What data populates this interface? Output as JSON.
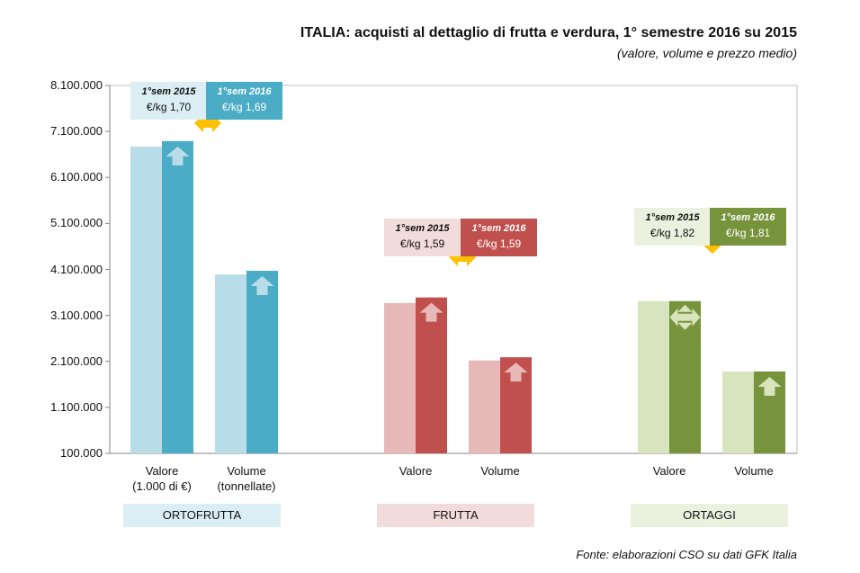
{
  "chart_data": {
    "type": "bar",
    "title": "ITALIA: acquisti al dettaglio di frutta e verdura, 1° semestre 2016 su 2015",
    "subtitle": "(valore, volume e prezzo medio)",
    "source": "Fonte: elaborazioni CSO su dati GFK Italia",
    "ylim": [
      100000,
      8100000
    ],
    "yticks": [
      "8.100.000",
      "7.100.000",
      "6.100.000",
      "5.100.000",
      "4.100.000",
      "3.100.000",
      "2.100.000",
      "1.100.000",
      "100.000"
    ],
    "groups": [
      {
        "name": "ORTOFRUTTA",
        "color2015": "#b8dde8",
        "color2016": "#4bacc6",
        "catbg": "#dbeef4",
        "categories": [
          {
            "label": "Valore",
            "sub": "(1.000 di €)",
            "v2015": 6770000,
            "v2016": 6890000,
            "arrow": "up"
          },
          {
            "label": "Volume",
            "sub": "(tonnellate)",
            "v2015": 3990000,
            "v2016": 4070000,
            "arrow": "up"
          }
        ],
        "price": {
          "label2015": "1°sem 2015",
          "price2015": "€/kg 1,70",
          "label2016": "1°sem 2016",
          "price2016": "€/kg 1,69",
          "trend": "stable"
        }
      },
      {
        "name": "FRUTTA",
        "color2015": "#e6b9b8",
        "color2016": "#c0504d",
        "catbg": "#f2dcdb",
        "categories": [
          {
            "label": "Valore",
            "sub": "",
            "v2015": 3370000,
            "v2016": 3490000,
            "arrow": "up"
          },
          {
            "label": "Volume",
            "sub": "",
            "v2015": 2120000,
            "v2016": 2190000,
            "arrow": "up"
          }
        ],
        "price": {
          "label2015": "1°sem 2015",
          "price2015": "€/kg 1,59",
          "label2016": "1°sem 2016",
          "price2016": "€/kg 1,59",
          "trend": "stable"
        }
      },
      {
        "name": "ORTAGGI",
        "color2015": "#d7e4bd",
        "color2016": "#77933c",
        "catbg": "#ebf1de",
        "categories": [
          {
            "label": "Valore",
            "sub": "",
            "v2015": 3410000,
            "v2016": 3410000,
            "arrow": "stable"
          },
          {
            "label": "Volume",
            "sub": "",
            "v2015": 1880000,
            "v2016": 1880000,
            "arrow": "up"
          }
        ],
        "price": {
          "label2015": "1°sem 2015",
          "price2015": "€/kg 1,82",
          "label2016": "1°sem 2016",
          "price2016": "€/kg 1,81",
          "trend": "down"
        }
      }
    ]
  }
}
